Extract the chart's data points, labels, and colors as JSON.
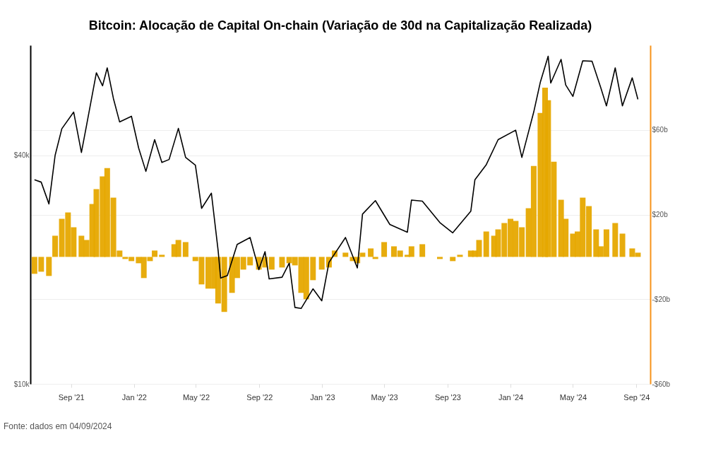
{
  "chart_data": {
    "type": "line",
    "title": "Bitcoin: Alocação de Capital On-chain (Variação de 30d na Capitalização Realizada)",
    "annotations": [
      "Fonte: dados em 04/09/2024"
    ],
    "xlim": [
      "2021-06-14",
      "2024-09-28"
    ],
    "xticks": [
      {
        "value": "2021-09-01",
        "label": "Sep '21"
      },
      {
        "value": "2022-01-01",
        "label": "Jan '22"
      },
      {
        "value": "2022-05-01",
        "label": "May '22"
      },
      {
        "value": "2022-09-01",
        "label": "Sep '22"
      },
      {
        "value": "2023-01-01",
        "label": "Jan '23"
      },
      {
        "value": "2023-05-01",
        "label": "May '23"
      },
      {
        "value": "2023-09-01",
        "label": "Sep '23"
      },
      {
        "value": "2024-01-01",
        "label": "Jan '24"
      },
      {
        "value": "2024-05-01",
        "label": "May '24"
      },
      {
        "value": "2024-09-01",
        "label": "Sep '24"
      }
    ],
    "log": "y",
    "ylim": [
      10000,
      78000
    ],
    "yticks": [
      {
        "value": 10000,
        "label": "$10k"
      },
      {
        "value": 40000,
        "label": "$40k"
      }
    ],
    "y2lim": [
      -60,
      100
    ],
    "y2ticks": [
      {
        "value": -60,
        "label": "-$60b"
      },
      {
        "value": -20,
        "label": "-$20b"
      },
      {
        "value": 20,
        "label": "$20b"
      },
      {
        "value": 60,
        "label": "$60b"
      }
    ],
    "grid": "y",
    "series": [
      {
        "type": "bar",
        "axis": "y2",
        "color": "#e6a800",
        "x": [
          "2021-06-22",
          "2021-07-05",
          "2021-07-20",
          "2021-08-01",
          "2021-08-14",
          "2021-08-26",
          "2021-09-06",
          "2021-09-21",
          "2021-10-01",
          "2021-10-12",
          "2021-10-20",
          "2021-11-01",
          "2021-11-10",
          "2021-11-22",
          "2021-12-04",
          "2021-12-15",
          "2021-12-27",
          "2022-01-10",
          "2022-01-20",
          "2022-02-01",
          "2022-02-10",
          "2022-02-24",
          "2022-03-10",
          "2022-03-20",
          "2022-03-28",
          "2022-04-11",
          "2022-04-30",
          "2022-05-12",
          "2022-05-25",
          "2022-06-05",
          "2022-06-13",
          "2022-06-25",
          "2022-07-10",
          "2022-07-20",
          "2022-08-01",
          "2022-08-14",
          "2022-08-31",
          "2022-09-12",
          "2022-09-25",
          "2022-10-15",
          "2022-10-29",
          "2022-11-09",
          "2022-11-21",
          "2022-12-01",
          "2022-12-14",
          "2022-12-31",
          "2023-01-14",
          "2023-01-25",
          "2023-02-15",
          "2023-03-01",
          "2023-03-10",
          "2023-03-20",
          "2023-04-05",
          "2023-04-14",
          "2023-05-01",
          "2023-05-20",
          "2023-06-01",
          "2023-06-15",
          "2023-06-23",
          "2023-07-14",
          "2023-07-25",
          "2023-08-17",
          "2023-09-11",
          "2023-09-25",
          "2023-10-16",
          "2023-10-24",
          "2023-11-01",
          "2023-11-15",
          "2023-11-30",
          "2023-12-08",
          "2023-12-20",
          "2024-01-01",
          "2024-01-11",
          "2024-01-23",
          "2024-02-05",
          "2024-02-15",
          "2024-02-28",
          "2024-03-08",
          "2024-03-14",
          "2024-03-25",
          "2024-04-08",
          "2024-04-17",
          "2024-05-01",
          "2024-05-10",
          "2024-05-20",
          "2024-06-01",
          "2024-06-15",
          "2024-06-24",
          "2024-07-05",
          "2024-07-22",
          "2024-08-05",
          "2024-08-24",
          "2024-09-04"
        ],
        "values": [
          -8,
          -7,
          -9,
          10,
          18,
          21,
          14,
          10,
          8,
          25,
          32,
          38,
          42,
          28,
          3,
          -1,
          -2,
          -3,
          -10,
          -2,
          3,
          1,
          0,
          6,
          8,
          7,
          -2,
          -13,
          -15,
          -15,
          -22,
          -26,
          -17,
          -10,
          -6,
          -4,
          -6,
          -5,
          -6,
          -5,
          -3,
          -4,
          -17,
          -20,
          -11,
          -6,
          -5,
          3,
          2,
          -2,
          -3,
          2,
          4,
          -1,
          7,
          5,
          3,
          1,
          5,
          6,
          0,
          -1,
          -2,
          1,
          3,
          3,
          8,
          12,
          10,
          13,
          16,
          18,
          17,
          14,
          23,
          43,
          68,
          80,
          74,
          45,
          27,
          18,
          11,
          12,
          28,
          24,
          13,
          5,
          13,
          16,
          11,
          4,
          2
        ]
      },
      {
        "color": "#000000",
        "x": [
          "2021-06-22",
          "2021-07-05",
          "2021-07-20",
          "2021-08-01",
          "2021-08-14",
          "2021-09-06",
          "2021-09-21",
          "2021-10-01",
          "2021-10-20",
          "2021-11-01",
          "2021-11-10",
          "2021-11-22",
          "2021-12-04",
          "2021-12-27",
          "2022-01-10",
          "2022-01-24",
          "2022-02-10",
          "2022-02-24",
          "2022-03-10",
          "2022-03-28",
          "2022-04-11",
          "2022-04-30",
          "2022-05-12",
          "2022-05-31",
          "2022-06-13",
          "2022-06-18",
          "2022-07-01",
          "2022-07-20",
          "2022-08-14",
          "2022-08-31",
          "2022-09-12",
          "2022-09-20",
          "2022-10-15",
          "2022-10-29",
          "2022-11-09",
          "2022-11-21",
          "2022-12-14",
          "2022-12-31",
          "2023-01-14",
          "2023-02-15",
          "2023-03-10",
          "2023-03-20",
          "2023-04-14",
          "2023-05-12",
          "2023-06-15",
          "2023-06-23",
          "2023-07-14",
          "2023-08-17",
          "2023-09-11",
          "2023-10-16",
          "2023-10-24",
          "2023-11-15",
          "2023-12-08",
          "2024-01-11",
          "2024-01-23",
          "2024-02-15",
          "2024-02-28",
          "2024-03-14",
          "2024-03-19",
          "2024-04-08",
          "2024-04-17",
          "2024-05-01",
          "2024-05-20",
          "2024-06-07",
          "2024-06-24",
          "2024-07-05",
          "2024-07-22",
          "2024-08-05",
          "2024-08-24",
          "2024-09-04"
        ],
        "values": [
          34500,
          34000,
          29800,
          40000,
          47000,
          52000,
          40700,
          48000,
          66000,
          61000,
          68000,
          56500,
          49000,
          50700,
          41800,
          36300,
          44000,
          38300,
          39000,
          47100,
          39500,
          37700,
          29000,
          31800,
          22500,
          19000,
          19300,
          23300,
          24300,
          20000,
          22300,
          18900,
          19100,
          20800,
          15900,
          15800,
          17800,
          16550,
          20900,
          24300,
          20200,
          28000,
          30400,
          26300,
          25100,
          30500,
          30300,
          26600,
          25000,
          28500,
          34500,
          37800,
          44000,
          46600,
          39500,
          52000,
          62500,
          73000,
          62000,
          71600,
          61300,
          57200,
          71000,
          70800,
          60300,
          54000,
          68000,
          54000,
          64000,
          56200
        ]
      }
    ]
  }
}
